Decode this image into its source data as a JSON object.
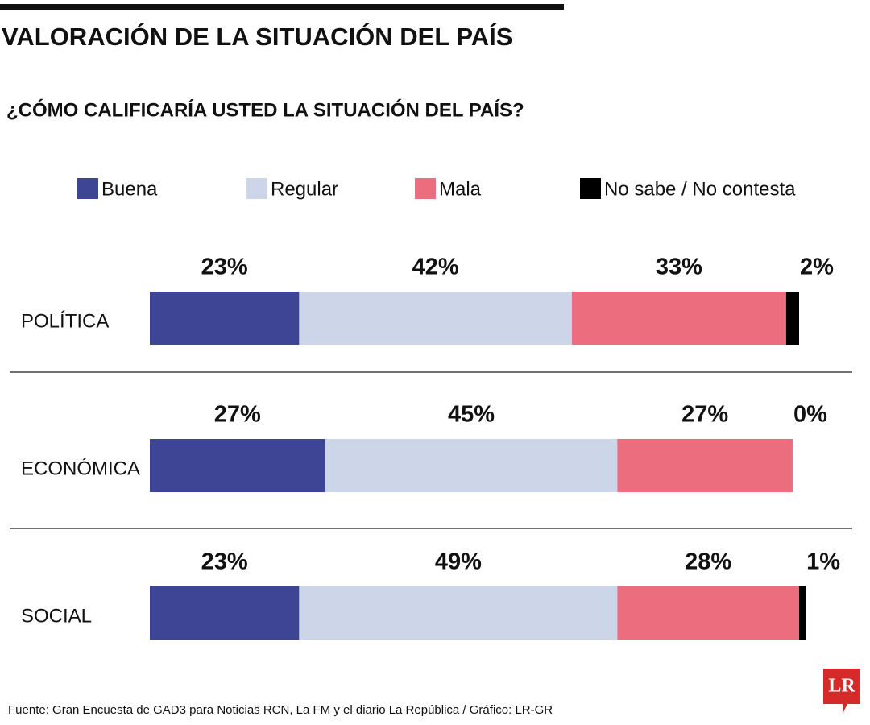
{
  "chart_data": {
    "type": "bar",
    "orientation": "horizontal",
    "stacked": true,
    "title": "VALORACIÓN DE LA SITUACIÓN DEL PAÍS",
    "subtitle": "¿CÓMO CALIFICARÍA USTED LA SITUACIÓN DEL PAÍS?",
    "categories": [
      "POLÍTICA",
      "ECONÓMICA",
      "SOCIAL"
    ],
    "series": [
      {
        "name": "Buena",
        "color": "#3d4594",
        "values": [
          23,
          27,
          23
        ],
        "value_labels": [
          "23%",
          "27%",
          "23%"
        ]
      },
      {
        "name": "Regular",
        "color": "#cdd6e8",
        "values": [
          42,
          45,
          49
        ],
        "value_labels": [
          "42%",
          "45%",
          "49%"
        ]
      },
      {
        "name": "Mala",
        "color": "#ec6d7e",
        "values": [
          33,
          27,
          28
        ],
        "value_labels": [
          "33%",
          "27%",
          "28%"
        ]
      },
      {
        "name": "No sabe / No contesta",
        "color": "#000000",
        "values": [
          2,
          0,
          1
        ],
        "value_labels": [
          "2%",
          "0%",
          "1%"
        ]
      }
    ],
    "source": "Fuente: Gran Encuesta de GAD3 para Noticias RCN, La FM y el diario La República / Gráfico: LR-GR",
    "logo": "LR"
  }
}
